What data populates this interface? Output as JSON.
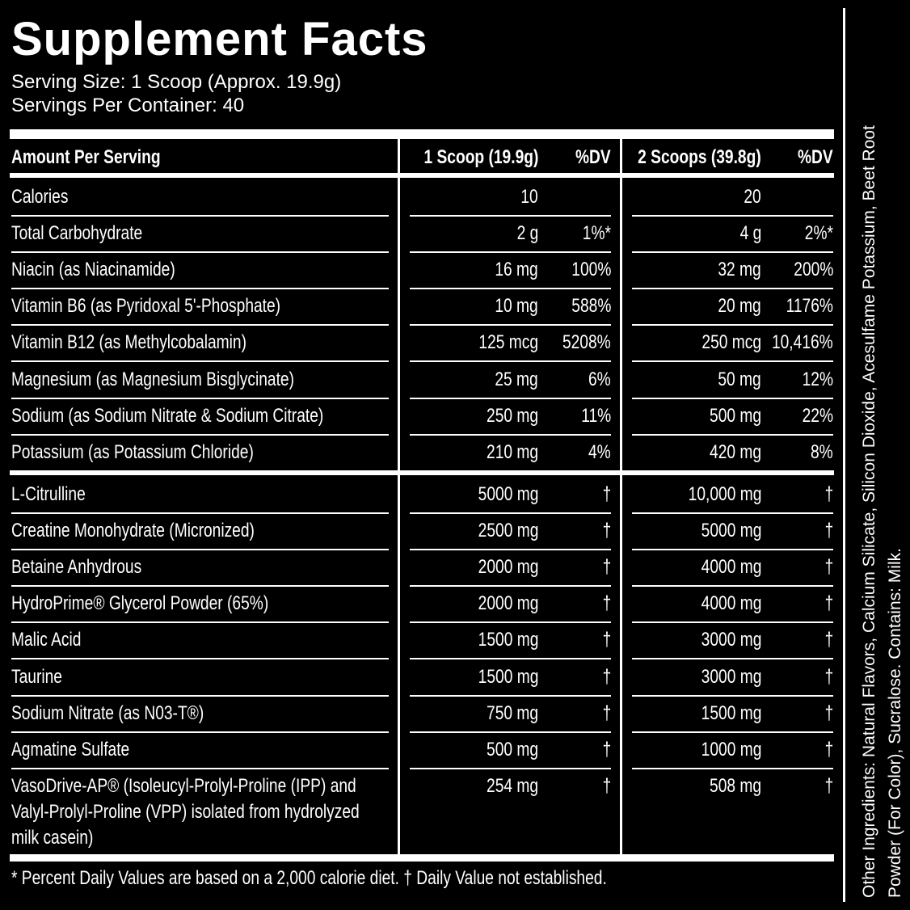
{
  "header": {
    "title": "Supplement Facts",
    "serving_size": "Serving Size: 1 Scoop (Approx. 19.9g)",
    "servings_per_container": "Servings Per Container: 40"
  },
  "table": {
    "columns": [
      "Amount Per Serving",
      "1 Scoop (19.9g)",
      "%DV",
      "2 Scoops (39.8g)",
      "%DV"
    ],
    "vitamin_rows": [
      [
        "Calories",
        "10",
        null,
        "20",
        null
      ],
      [
        "Total Carbohydrate",
        "2 g",
        "1%*",
        "4 g",
        "2%*"
      ],
      [
        "Niacin (as Niacinamide)",
        "16 mg",
        "100%",
        "32 mg",
        "200%"
      ],
      [
        "Vitamin B6 (as Pyridoxal 5'-Phosphate)",
        "10 mg",
        "588%",
        "20 mg",
        "1176%"
      ],
      [
        "Vitamin B12 (as Methylcobalamin)",
        "125 mcg",
        "5208%",
        "250 mcg",
        "10,416%"
      ],
      [
        "Magnesium (as Magnesium Bisglycinate)",
        "25 mg",
        "6%",
        "50 mg",
        "12%"
      ],
      [
        "Sodium (as Sodium Nitrate & Sodium Citrate)",
        "250 mg",
        "11%",
        "500 mg",
        "22%"
      ],
      [
        "Potassium (as Potassium Chloride)",
        "210 mg",
        "4%",
        "420 mg",
        "8%"
      ]
    ],
    "ingredient_rows": [
      [
        "L-Citrulline",
        "5000 mg",
        "†",
        "10,000 mg",
        "†"
      ],
      [
        "Creatine Monohydrate (Micronized)",
        "2500 mg",
        "†",
        "5000 mg",
        "†"
      ],
      [
        "Betaine Anhydrous",
        "2000 mg",
        "†",
        "4000 mg",
        "†"
      ],
      [
        "HydroPrime® Glycerol Powder (65%)",
        "2000 mg",
        "†",
        "4000 mg",
        "†"
      ],
      [
        "Malic Acid",
        "1500 mg",
        "†",
        "3000 mg",
        "†"
      ],
      [
        "Taurine",
        "1500 mg",
        "†",
        "3000 mg",
        "†"
      ],
      [
        "Sodium Nitrate (as N03-T®)",
        "750 mg",
        "†",
        "1500 mg",
        "†"
      ],
      [
        "Agmatine Sulfate",
        "500 mg",
        "†",
        "1000 mg",
        "†"
      ],
      [
        "VasoDrive-AP® (Isoleucyl-Prolyl-Proline (IPP) and Valyl-Prolyl-Proline (VPP) isolated from hydrolyzed milk casein)",
        "254 mg",
        "†",
        "508 mg",
        "†"
      ]
    ]
  },
  "footnote": "* Percent Daily Values are based on a 2,000 calorie diet. † Daily Value not established.",
  "other_ingredients": "Other Ingredients: Natural Flavors, Calcium Silicate, Silicon Dioxide, Acesulfame Potassium, Beet Root Powder (For Color), Sucralose. Contains: Milk."
}
